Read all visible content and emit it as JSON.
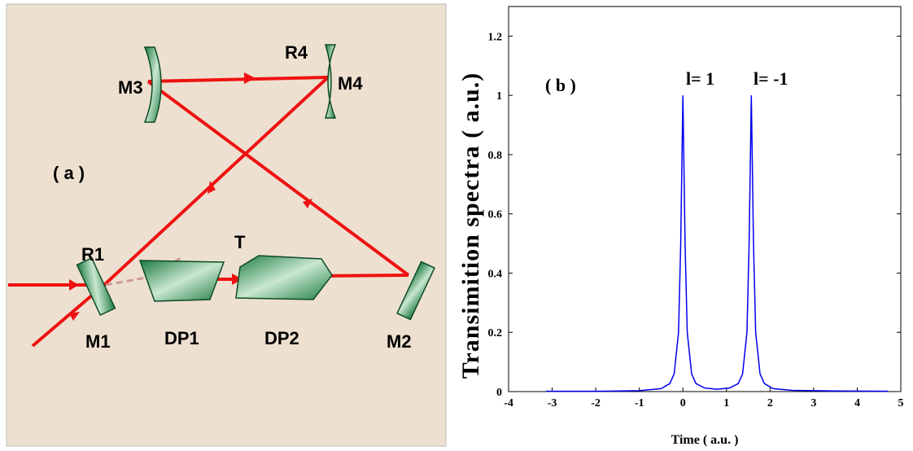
{
  "diagram": {
    "labels": {
      "m3": "M3",
      "r4": "R4",
      "m4": "M4",
      "panel": "( a )",
      "t": "T",
      "r1": "R1",
      "m1": "M1",
      "dp1": "DP1",
      "dp2": "DP2",
      "m2": "M2"
    }
  },
  "chart_data": {
    "type": "line",
    "x_label": "Time ( a.u. )",
    "y_label": "Transimition spectra ( a.u.)",
    "annotations": [
      "( b )",
      "l= 1",
      "l= -1"
    ],
    "x": [
      -3.14,
      -2,
      -1,
      -0.5,
      -0.3,
      -0.2,
      -0.1,
      -0.05,
      0,
      0.05,
      0.1,
      0.2,
      0.3,
      0.5,
      0.785,
      1.07,
      1.27,
      1.37,
      1.47,
      1.52,
      1.57,
      1.62,
      1.67,
      1.77,
      1.87,
      2.07,
      2.5,
      3.5,
      4.71
    ],
    "values": [
      0.001,
      0.001,
      0.003,
      0.01,
      0.027,
      0.06,
      0.2,
      0.5,
      1,
      0.5,
      0.2,
      0.06,
      0.027,
      0.012,
      0.008,
      0.012,
      0.027,
      0.06,
      0.2,
      0.5,
      1,
      0.5,
      0.2,
      0.06,
      0.027,
      0.01,
      0.004,
      0.002,
      0.001
    ],
    "color": "#0000ee",
    "xlim": [
      -4,
      5
    ],
    "ylim": [
      0,
      1.3
    ],
    "xticks": [
      -4,
      -3,
      -2,
      -1,
      0,
      1,
      2,
      3,
      4,
      5
    ],
    "yticks": [
      0,
      0.2,
      0.4,
      0.6,
      0.8,
      1,
      1.2
    ]
  }
}
